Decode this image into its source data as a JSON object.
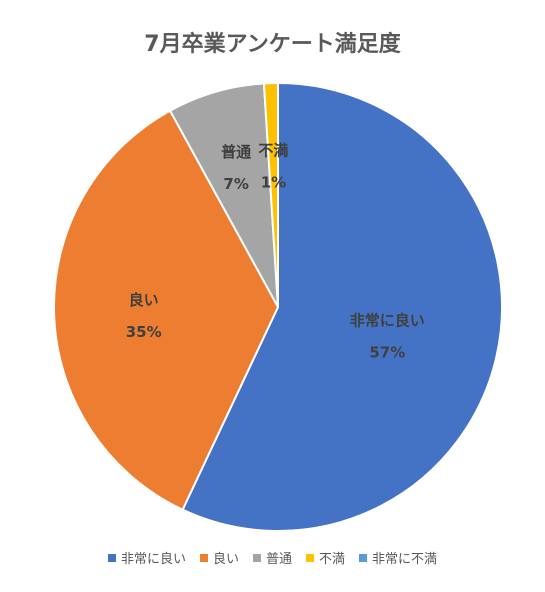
{
  "chart_data": {
    "type": "pie",
    "title": "7月卒業アンケート満足度",
    "categories": [
      "非常に良い",
      "良い",
      "普通",
      "不満",
      "非常に不満"
    ],
    "values": [
      57,
      35,
      7,
      1,
      0
    ],
    "percent_labels": [
      "57%",
      "35%",
      "7%",
      "1%",
      ""
    ],
    "colors": [
      "#4472C4",
      "#ED7D31",
      "#A5A5A5",
      "#FFC000",
      "#5B9BD5"
    ],
    "legend_position": "bottom",
    "data_labels": "category and percentage"
  }
}
